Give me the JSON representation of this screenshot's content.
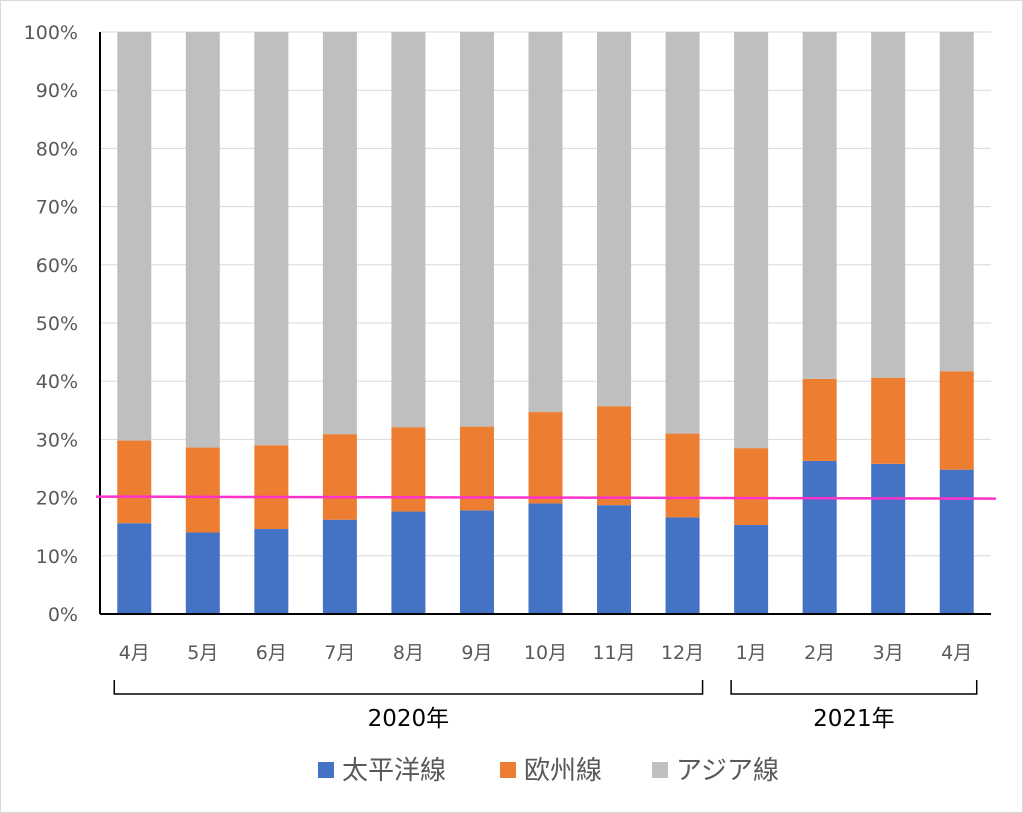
{
  "chart_data": {
    "type": "bar",
    "stacked": "percent",
    "categories": [
      "4月",
      "5月",
      "6月",
      "7月",
      "8月",
      "9月",
      "10月",
      "11月",
      "12月",
      "1月",
      "2月",
      "3月",
      "4月"
    ],
    "year_groups": [
      {
        "label": "2020年",
        "first_index": 0,
        "last_index": 8
      },
      {
        "label": "2021年",
        "first_index": 9,
        "last_index": 12
      }
    ],
    "series": [
      {
        "name": "太平洋線",
        "color": "#4472c4",
        "values": [
          15.6,
          14.0,
          14.6,
          16.2,
          17.6,
          17.8,
          19.0,
          18.7,
          16.6,
          15.3,
          26.3,
          25.8,
          24.8
        ]
      },
      {
        "name": "欧州線",
        "color": "#ed7d31",
        "values": [
          14.2,
          14.6,
          14.4,
          14.7,
          14.5,
          14.4,
          15.7,
          17.0,
          14.4,
          13.2,
          14.1,
          14.8,
          16.9
        ]
      },
      {
        "name": "アジア線",
        "color": "#bfbfbf",
        "values": [
          70.2,
          71.4,
          71.0,
          69.1,
          67.9,
          67.8,
          65.3,
          64.3,
          69.0,
          71.5,
          59.6,
          59.4,
          58.3
        ]
      }
    ],
    "ylim": [
      0,
      100
    ],
    "yticks": [
      "0%",
      "10%",
      "20%",
      "30%",
      "40%",
      "50%",
      "60%",
      "70%",
      "80%",
      "90%",
      "100%"
    ],
    "grid": true,
    "legend_position": "bottom",
    "reference_line": {
      "value": 20,
      "color": "#ff33cc"
    }
  }
}
